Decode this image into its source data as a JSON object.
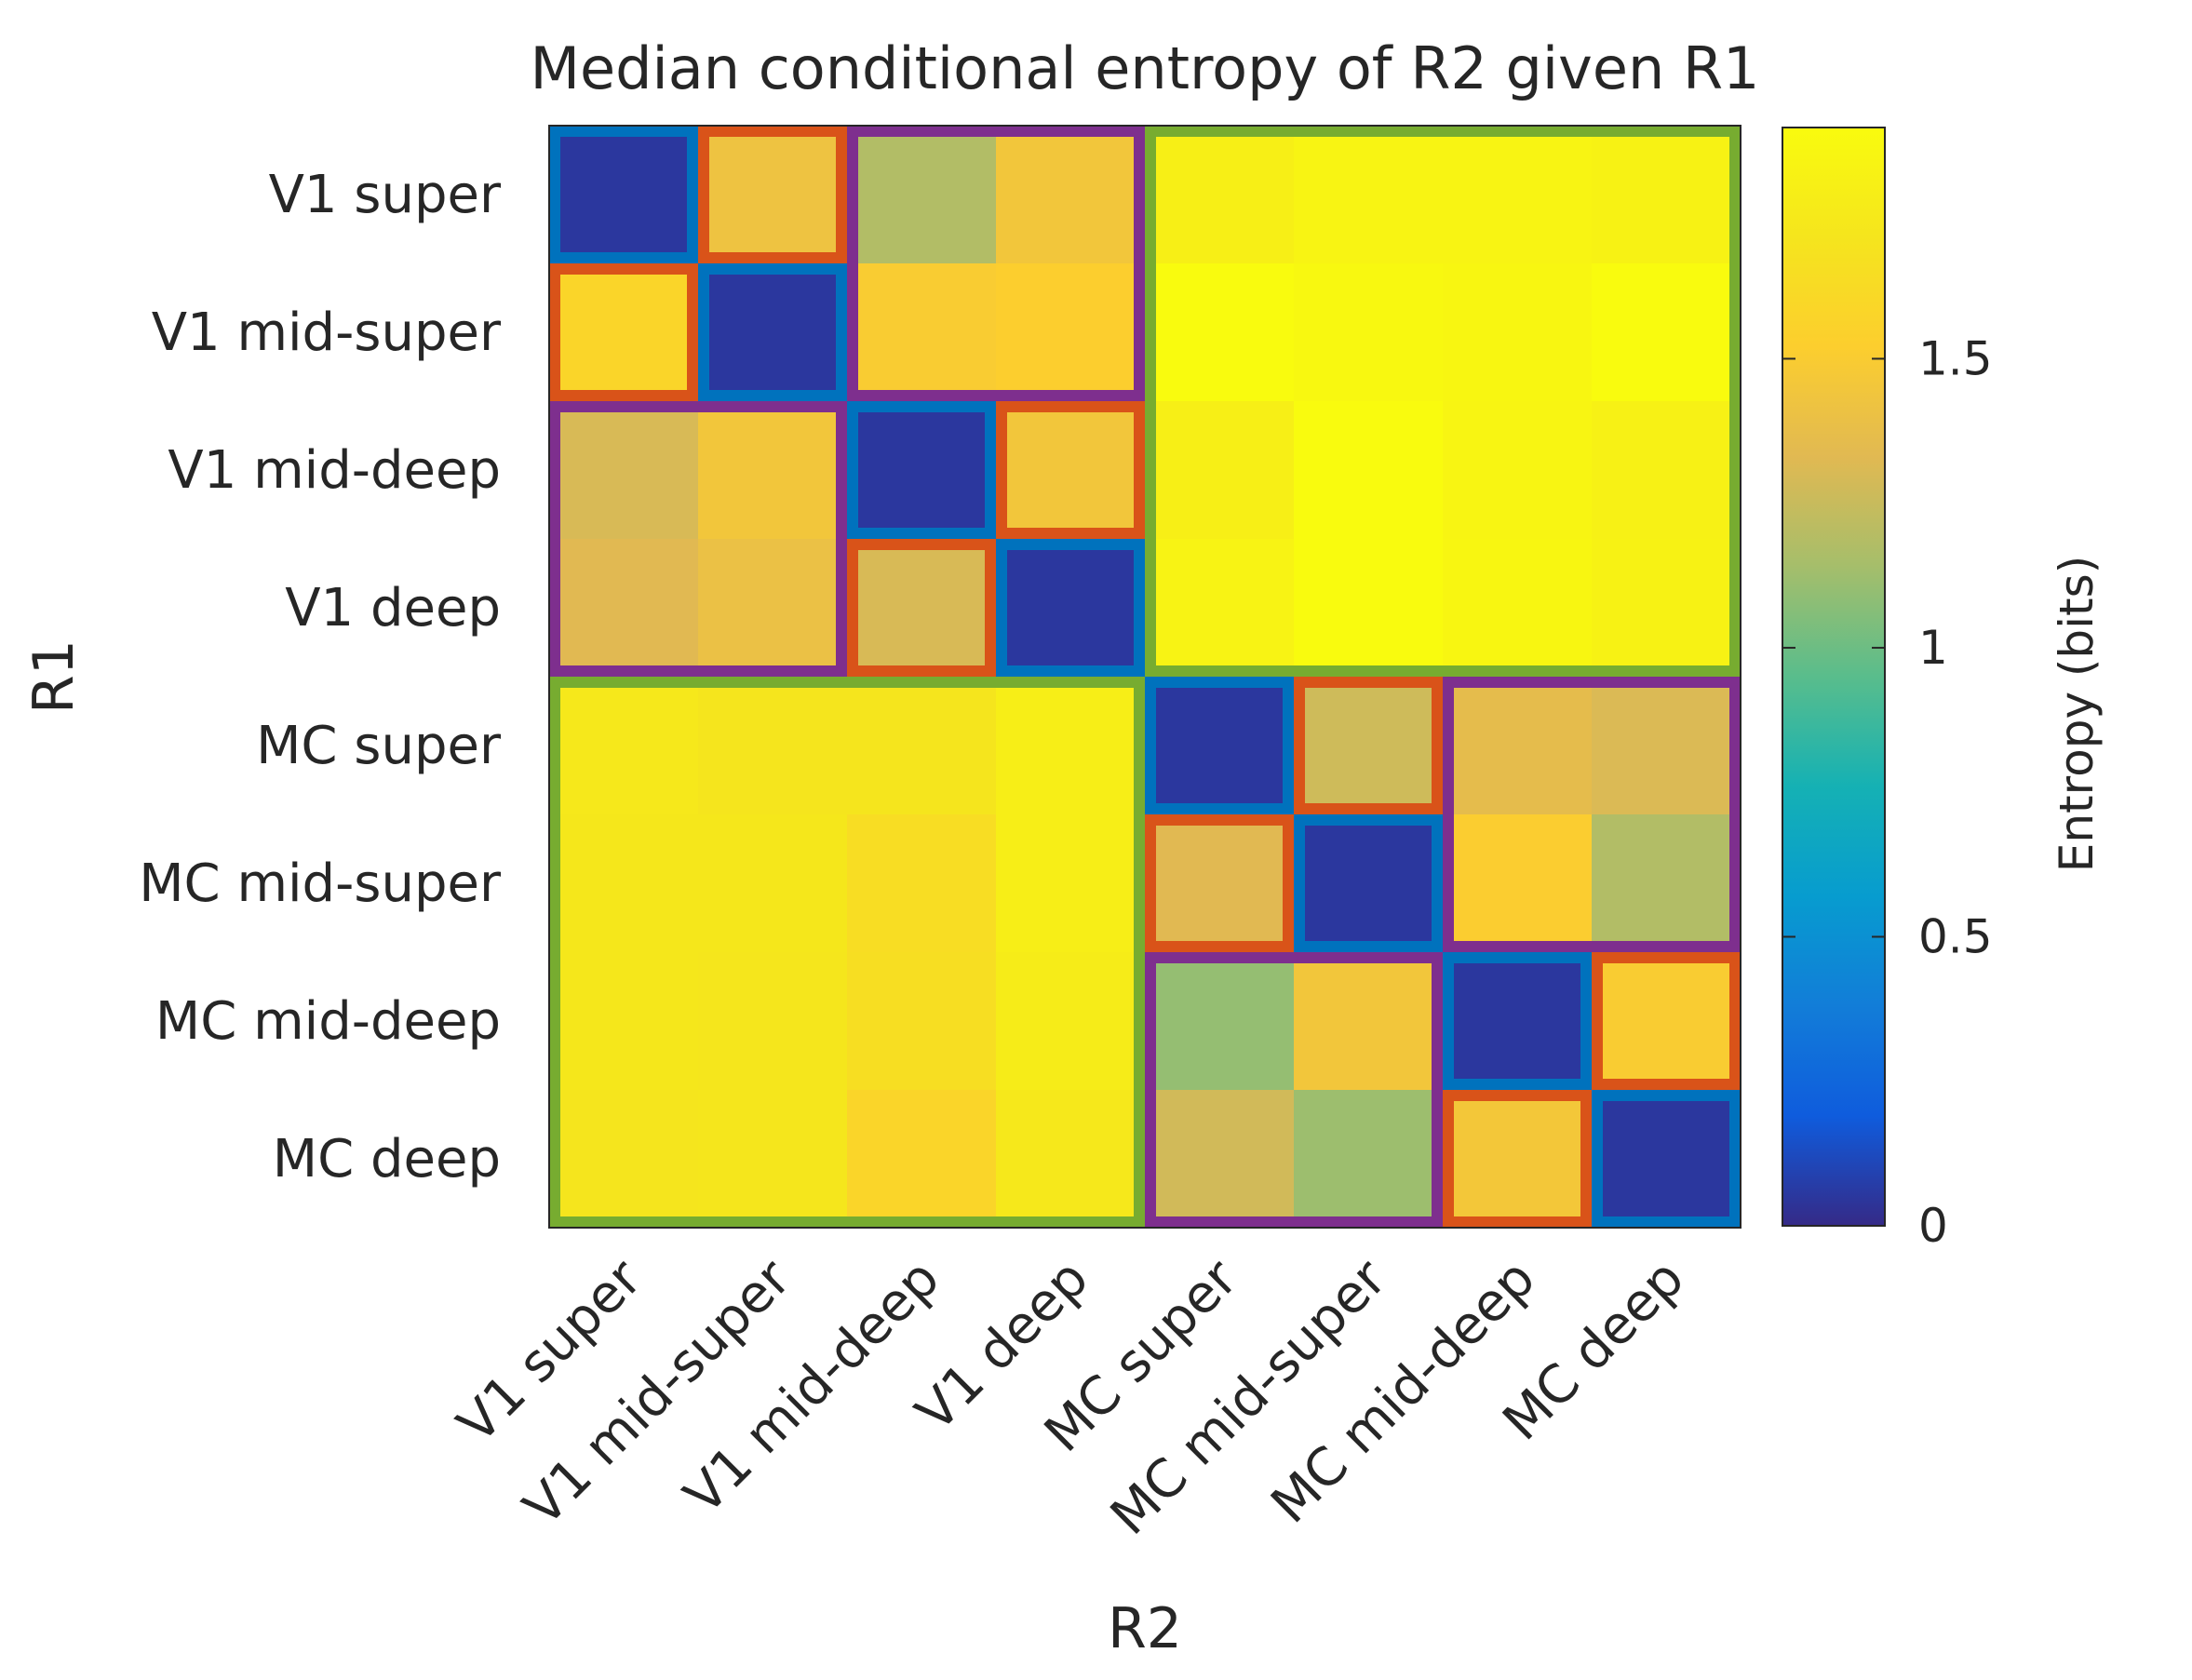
{
  "chart_data": {
    "type": "heatmap",
    "title": "Median conditional entropy of R2 given R1",
    "xlabel": "R2",
    "ylabel": "R1",
    "x_categories": [
      "V1 super",
      "V1 mid-super",
      "V1 mid-deep",
      "V1 deep",
      "MC super",
      "MC mid-super",
      "MC mid-deep",
      "MC deep"
    ],
    "y_categories": [
      "V1 super",
      "V1 mid-super",
      "V1 mid-deep",
      "V1 deep",
      "MC super",
      "MC mid-super",
      "MC mid-deep",
      "MC deep"
    ],
    "values": [
      [
        0.05,
        1.42,
        1.18,
        1.45,
        1.8,
        1.84,
        1.84,
        1.82
      ],
      [
        1.58,
        0.05,
        1.5,
        1.52,
        1.9,
        1.87,
        1.86,
        1.9
      ],
      [
        1.3,
        1.45,
        0.05,
        1.45,
        1.8,
        1.91,
        1.85,
        1.81
      ],
      [
        1.33,
        1.4,
        1.3,
        0.05,
        1.83,
        1.9,
        1.86,
        1.82
      ],
      [
        1.74,
        1.71,
        1.71,
        1.79,
        0.05,
        1.27,
        1.36,
        1.31
      ],
      [
        1.73,
        1.73,
        1.64,
        1.79,
        1.33,
        0.05,
        1.51,
        1.18
      ],
      [
        1.73,
        1.72,
        1.65,
        1.77,
        1.1,
        1.45,
        0.05,
        1.5
      ],
      [
        1.71,
        1.72,
        1.58,
        1.74,
        1.28,
        1.12,
        1.46,
        0.05
      ]
    ],
    "clim": [
      0,
      1.9
    ],
    "colorbar": {
      "label": "Entropy (bits)",
      "ticks": [
        0,
        0.5,
        1,
        1.5
      ],
      "tick_labels": [
        "0",
        "0.5",
        "1",
        "1.5"
      ]
    },
    "block_outline_colors": {
      "self": "#0072bd",
      "same_area_layer_pair": "#d95319",
      "same_area": "#7e2f8e",
      "cross_area": "#77ac30"
    }
  }
}
